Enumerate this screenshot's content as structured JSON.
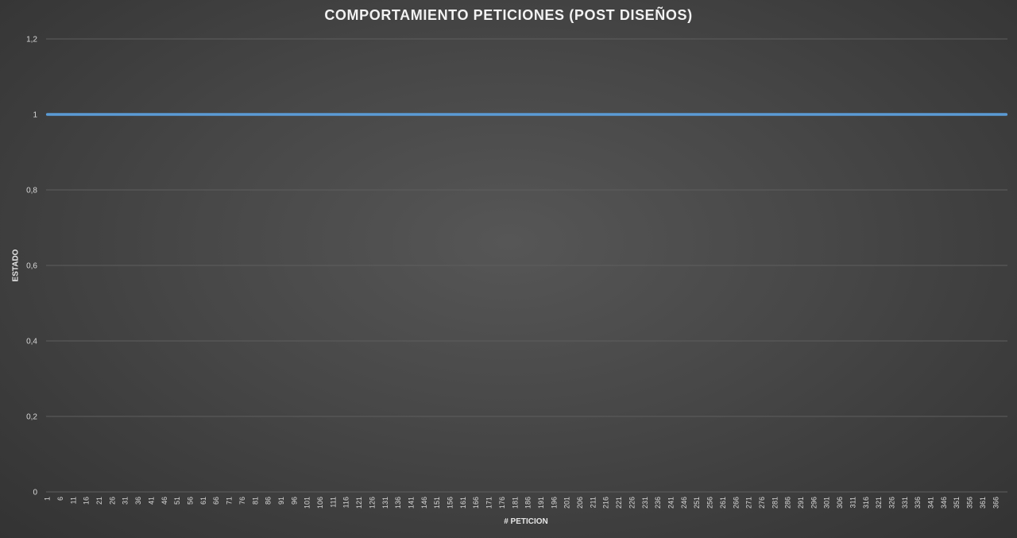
{
  "chart_data": {
    "type": "line",
    "title": "COMPORTAMIENTO PETICIONES (POST DISEÑOS)",
    "xlabel": "# PETICION",
    "ylabel": "ESTADO",
    "ylim": [
      0,
      1.2
    ],
    "y_ticks": [
      "0",
      "0,2",
      "0,4",
      "0,6",
      "0,8",
      "1",
      "1,2"
    ],
    "y_tick_values": [
      0,
      0.2,
      0.4,
      0.6,
      0.8,
      1.0,
      1.2
    ],
    "x_range": [
      1,
      370
    ],
    "x_tick_step": 5,
    "grid": true,
    "legend": "none",
    "series_color": "#5b9bd5",
    "series": [
      {
        "x": [
          1,
          370
        ],
        "values": [
          1,
          1
        ]
      }
    ]
  }
}
